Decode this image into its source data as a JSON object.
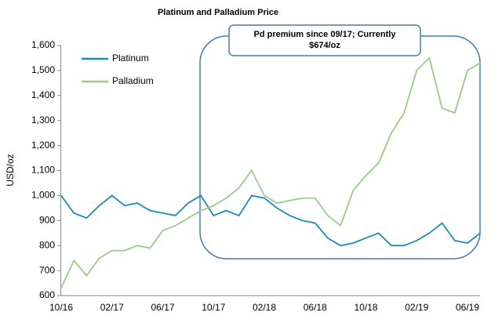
{
  "chart_data": {
    "type": "line",
    "title": "Platinum and Palladium Price",
    "y_label": "USD/oz",
    "annotation": [
      "Pd premium since 09/17; Currently",
      "$674/oz"
    ],
    "categories": [
      "10/16",
      null,
      null,
      null,
      "02/17",
      null,
      null,
      null,
      "06/17",
      null,
      null,
      null,
      "10/17",
      null,
      null,
      null,
      "02/18",
      null,
      null,
      null,
      "06/18",
      null,
      null,
      null,
      "10/18",
      null,
      null,
      null,
      "02/19",
      null,
      null,
      null,
      "06/19",
      null
    ],
    "series": [
      {
        "name": "Platinum",
        "color": "#1a8cb4",
        "values": [
          1000,
          930,
          910,
          960,
          1000,
          960,
          970,
          940,
          930,
          920,
          970,
          1000,
          920,
          940,
          920,
          1000,
          990,
          950,
          920,
          900,
          890,
          830,
          800,
          810,
          830,
          850,
          800,
          800,
          820,
          850,
          890,
          820,
          810,
          850
        ]
      },
      {
        "name": "Palladium",
        "color": "#9cc98a",
        "values": [
          630,
          740,
          680,
          750,
          780,
          780,
          800,
          790,
          860,
          880,
          910,
          940,
          960,
          990,
          1030,
          1100,
          1000,
          970,
          980,
          990,
          990,
          920,
          880,
          1020,
          1080,
          1130,
          1250,
          1330,
          1500,
          1550,
          1350,
          1330,
          1500,
          1530
        ]
      }
    ],
    "ylim": [
      600,
      1600
    ],
    "yticks": [
      600,
      700,
      800,
      900,
      {
        "value": 1000,
        "label": "1,000"
      },
      {
        "value": 1100,
        "label": "1,100"
      },
      {
        "value": 1200,
        "label": "1,200"
      },
      {
        "value": 1300,
        "label": "1,300"
      },
      {
        "value": 1400,
        "label": "1,400"
      },
      {
        "value": 1500,
        "label": "1,500"
      },
      {
        "value": 1600,
        "label": "1,600"
      }
    ],
    "grid": false,
    "legend": "top-left"
  }
}
